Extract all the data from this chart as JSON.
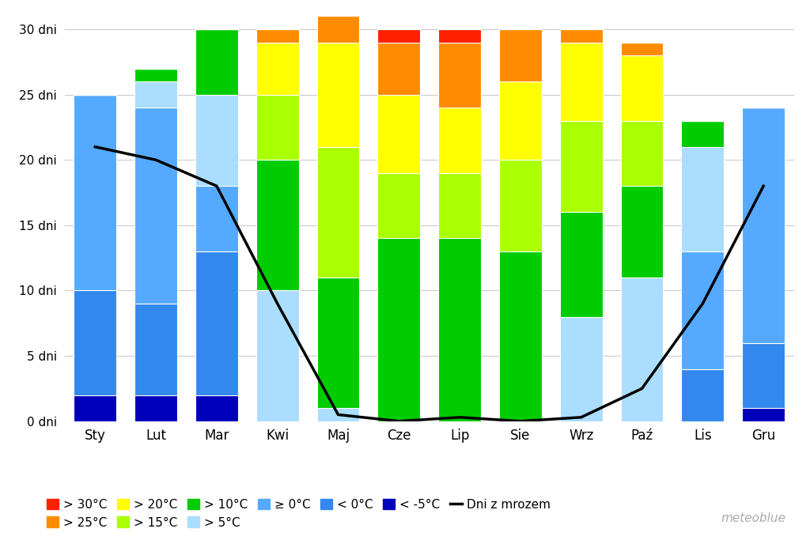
{
  "months": [
    "Sty",
    "Lut",
    "Mar",
    "Kwi",
    "Maj",
    "Cze",
    "Lip",
    "Sie",
    "Wrz",
    "Paź",
    "Lis",
    "Gru"
  ],
  "segments": {
    "gt30": [
      0,
      0,
      0,
      0,
      0,
      1,
      1,
      0,
      0,
      0,
      0,
      0
    ],
    "gt25": [
      0,
      0,
      0,
      1,
      2,
      4,
      5,
      4,
      1,
      1,
      0,
      0
    ],
    "gt20": [
      0,
      0,
      0,
      4,
      8,
      6,
      5,
      6,
      6,
      5,
      0,
      0
    ],
    "gt15": [
      0,
      0,
      0,
      5,
      10,
      5,
      5,
      7,
      7,
      5,
      0,
      0
    ],
    "gt10": [
      0,
      1,
      5,
      10,
      10,
      14,
      14,
      13,
      8,
      7,
      2,
      0
    ],
    "gt5": [
      0,
      2,
      7,
      10,
      1,
      0,
      0,
      0,
      8,
      11,
      8,
      0
    ],
    "ge0": [
      15,
      15,
      5,
      0,
      0,
      0,
      0,
      0,
      0,
      0,
      9,
      18
    ],
    "lt0": [
      8,
      7,
      11,
      0,
      0,
      0,
      0,
      0,
      0,
      0,
      4,
      5
    ],
    "ltm5": [
      2,
      2,
      2,
      0,
      0,
      0,
      0,
      0,
      0,
      0,
      0,
      1
    ]
  },
  "frost_days": [
    21,
    20,
    18,
    9,
    0.5,
    0,
    0.3,
    0,
    0.3,
    2.5,
    9,
    18
  ],
  "colors": {
    "gt30": "#ff2000",
    "gt25": "#ff8c00",
    "gt20": "#ffff00",
    "gt15": "#aaff00",
    "gt10": "#00cc00",
    "gt5": "#aaddff",
    "ge0": "#55aaff",
    "lt0": "#3388ee",
    "ltm5": "#0000bb"
  },
  "legend_labels": {
    "gt30": "> 30°C",
    "gt25": "> 25°C",
    "gt20": "> 20°C",
    "gt15": "> 15°C",
    "gt10": "> 10°C",
    "gt5": "> 5°C",
    "ge0": "≥ 0°C",
    "lt0": "< 0°C",
    "ltm5": "< -5°C"
  },
  "frost_label": "Dni z mrozem",
  "yticks": [
    0,
    5,
    10,
    15,
    20,
    25,
    30
  ],
  "ytick_labels": [
    "0 dni",
    "5 dni",
    "10 dni",
    "15 dni",
    "20 dni",
    "25 dni",
    "30 dni"
  ],
  "ylim": [
    0,
    31
  ],
  "background_color": "#ffffff",
  "watermark": "meteoblue"
}
